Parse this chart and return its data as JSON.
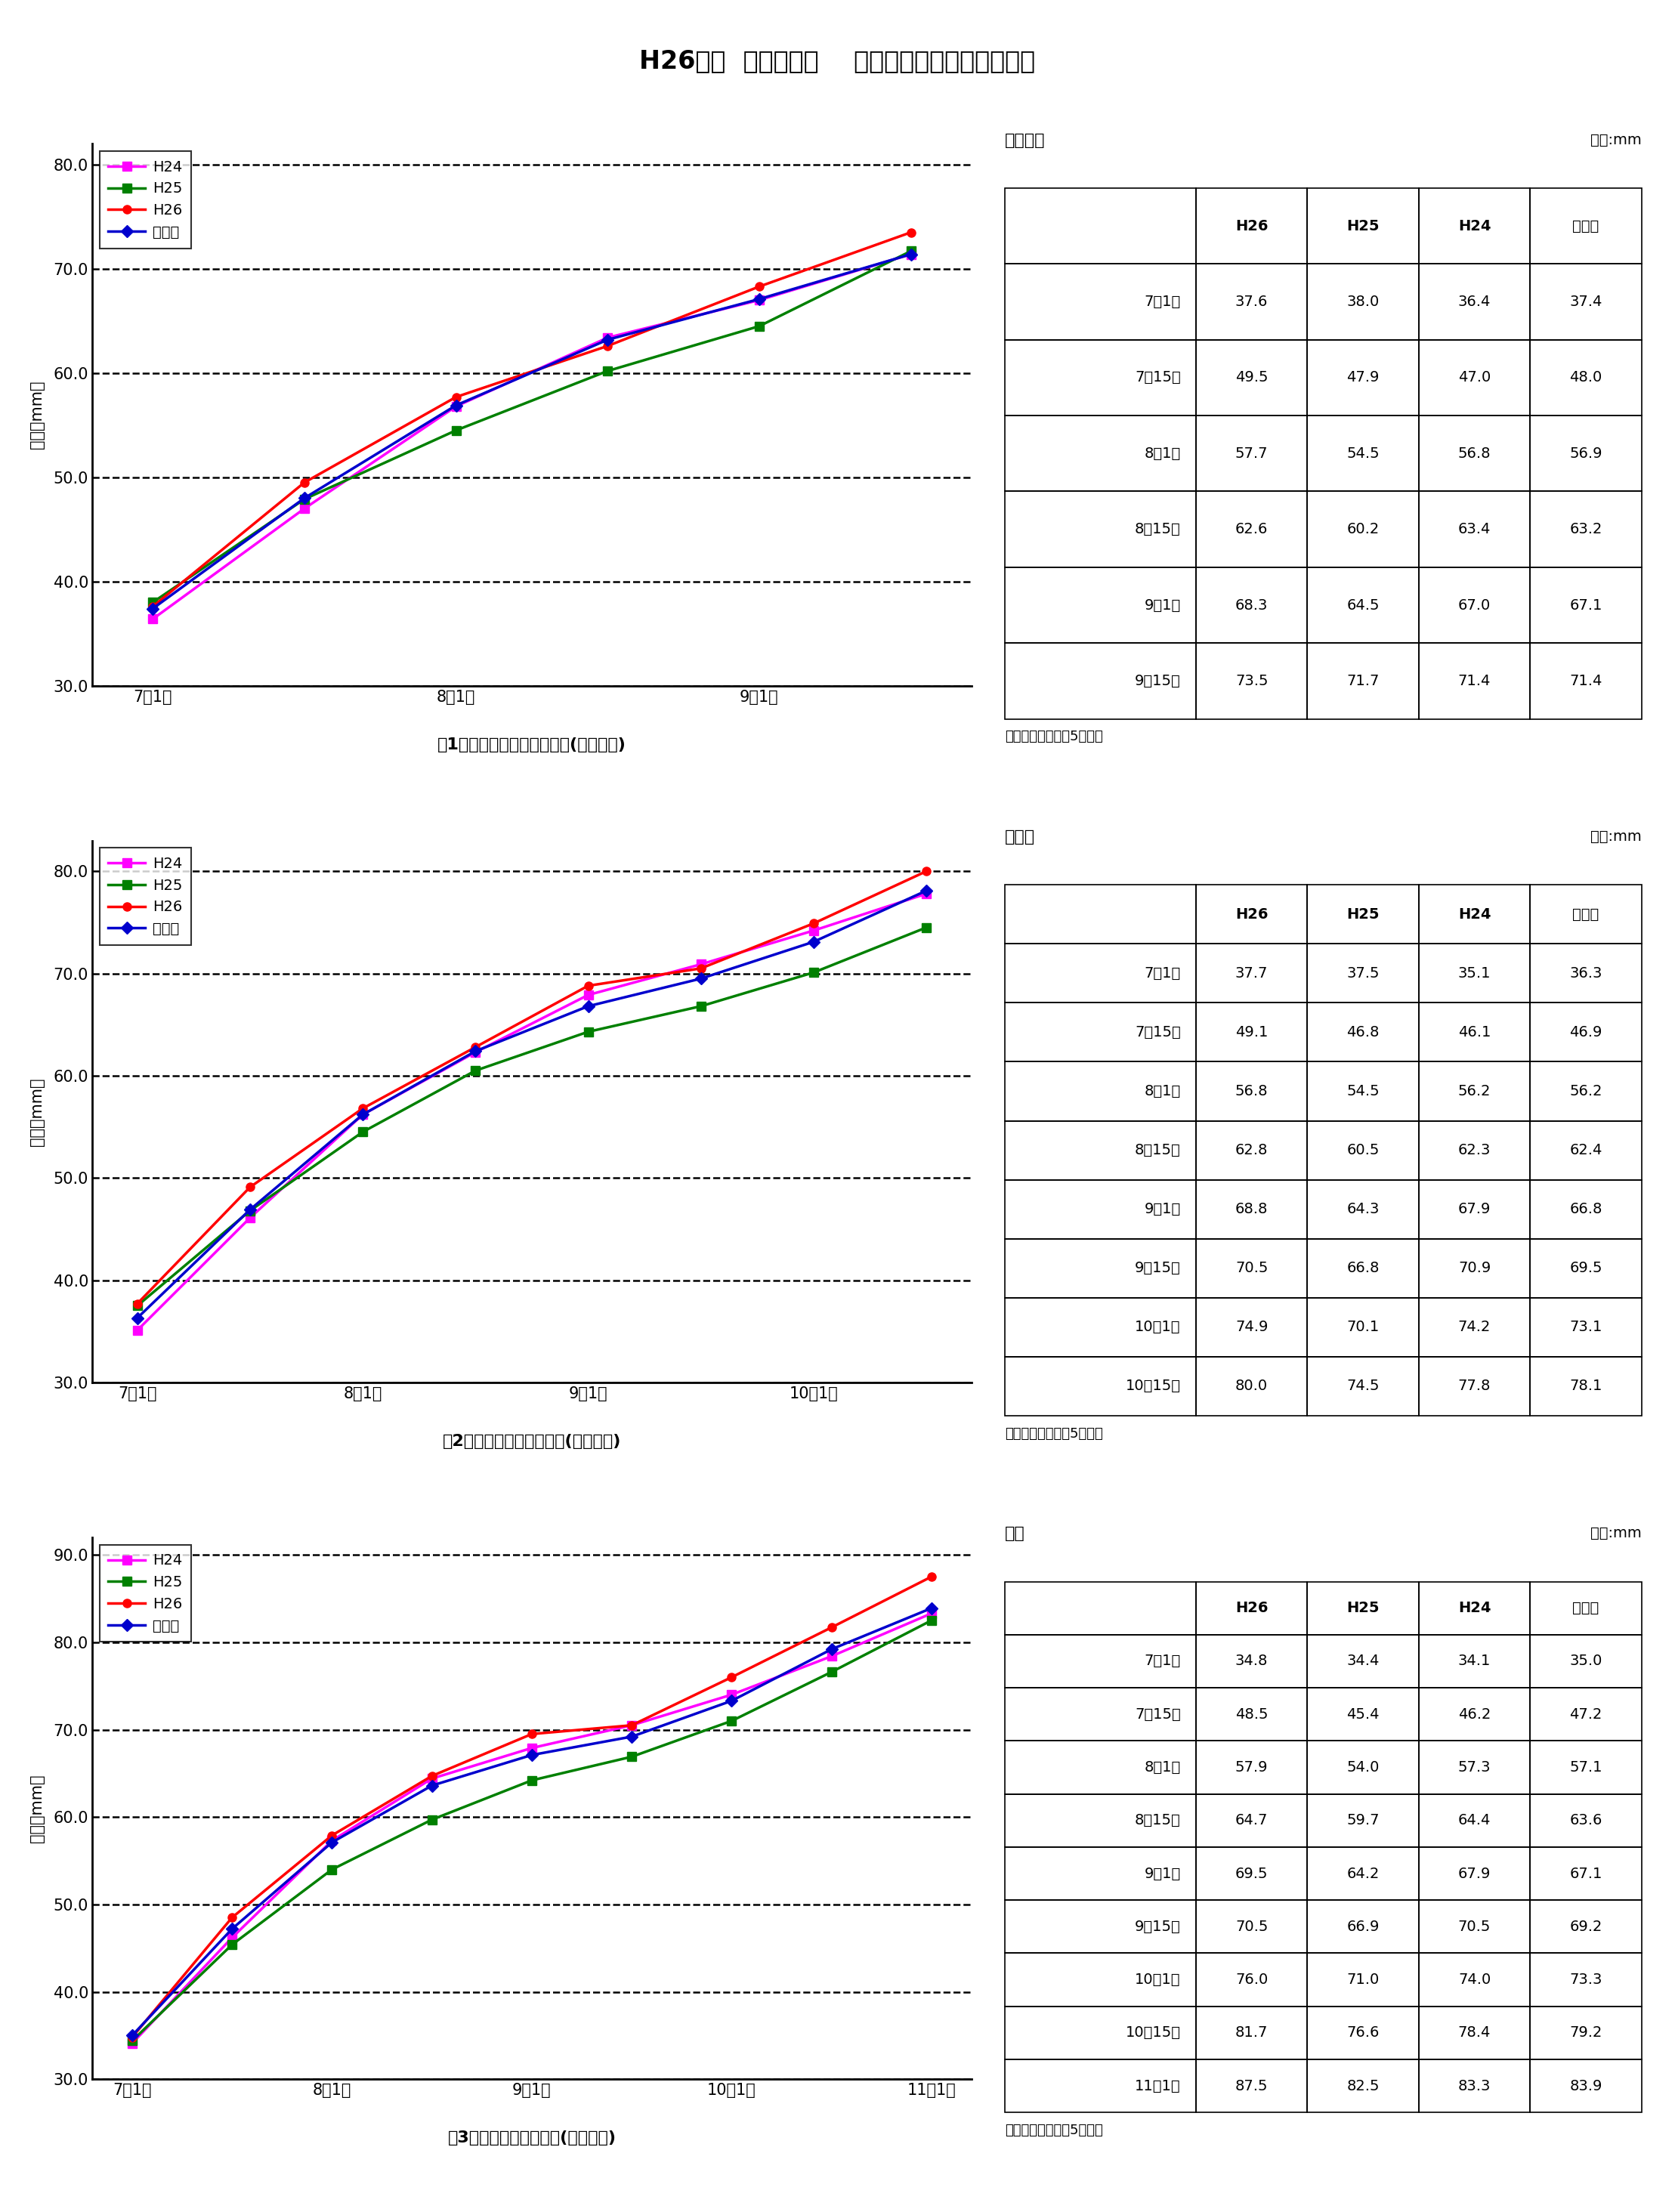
{
  "title": "H26年度  カキの肥大    伊都振興局農業振興課調べ",
  "series_order": [
    "H24",
    "H25",
    "H26",
    "平年値"
  ],
  "series_colors": {
    "H24": "#FF00FF",
    "H25": "#008000",
    "H26": "#FF0000",
    "平年値": "#0000CD"
  },
  "series_markers": {
    "H24": "s",
    "H25": "s",
    "H26": "o",
    "平年値": "D"
  },
  "chart1": {
    "caption": "図1　刀根早生の横径の推移(伊都平均)",
    "ylabel": "横径（mm）",
    "ylim": [
      30.0,
      82.0
    ],
    "yticks": [
      30.0,
      40.0,
      50.0,
      60.0,
      70.0,
      80.0
    ],
    "x_positions": [
      0,
      1,
      2,
      3,
      4,
      5
    ],
    "x_tick_positions": [
      0,
      2,
      4
    ],
    "x_tick_labels": [
      "7月1日",
      "8月1日",
      "9月1日"
    ],
    "series": {
      "H24": [
        36.4,
        47.0,
        56.8,
        63.4,
        67.0,
        71.4
      ],
      "H25": [
        38.0,
        47.9,
        54.5,
        60.2,
        64.5,
        71.7
      ],
      "H26": [
        37.6,
        49.5,
        57.7,
        62.6,
        68.3,
        73.5
      ],
      "平年値": [
        37.4,
        48.0,
        56.9,
        63.2,
        67.1,
        71.4
      ]
    },
    "table_title": "刀根早生",
    "table_unit": "単位:mm",
    "table_rows": [
      [
        "",
        "H26",
        "H25",
        "H24",
        "平年値"
      ],
      [
        "7月1日",
        "37.6",
        "38.0",
        "36.4",
        "37.4"
      ],
      [
        "7月15日",
        "49.5",
        "47.9",
        "47.0",
        "48.0"
      ],
      [
        "8月1日",
        "57.7",
        "54.5",
        "56.8",
        "56.9"
      ],
      [
        "8月15日",
        "62.6",
        "60.2",
        "63.4",
        "63.2"
      ],
      [
        "9月1日",
        "68.3",
        "64.5",
        "67.0",
        "67.1"
      ],
      [
        "9月15日",
        "73.5",
        "71.7",
        "71.4",
        "71.4"
      ]
    ],
    "table_note": "注　平年値は過去5年の値"
  },
  "chart2": {
    "caption": "図2　平核無の横径の推移(伊都平均)",
    "ylabel": "横径（mm）",
    "ylim": [
      30.0,
      83.0
    ],
    "yticks": [
      30.0,
      40.0,
      50.0,
      60.0,
      70.0,
      80.0
    ],
    "x_positions": [
      0,
      1,
      2,
      3,
      4,
      5,
      6,
      7
    ],
    "x_tick_positions": [
      0,
      2,
      4,
      6
    ],
    "x_tick_labels": [
      "7月1日",
      "8月1日",
      "9月1日",
      "10月1日"
    ],
    "series": {
      "H24": [
        35.1,
        46.1,
        56.2,
        62.3,
        67.9,
        70.9,
        74.2,
        77.8
      ],
      "H25": [
        37.5,
        46.8,
        54.5,
        60.5,
        64.3,
        66.8,
        70.1,
        74.5
      ],
      "H26": [
        37.7,
        49.1,
        56.8,
        62.8,
        68.8,
        70.5,
        74.9,
        80.0
      ],
      "平年値": [
        36.3,
        46.9,
        56.2,
        62.4,
        66.8,
        69.5,
        73.1,
        78.1
      ]
    },
    "table_title": "平核無",
    "table_unit": "単位:mm",
    "table_rows": [
      [
        "",
        "H26",
        "H25",
        "H24",
        "平年値"
      ],
      [
        "7月1日",
        "37.7",
        "37.5",
        "35.1",
        "36.3"
      ],
      [
        "7月15日",
        "49.1",
        "46.8",
        "46.1",
        "46.9"
      ],
      [
        "8月1日",
        "56.8",
        "54.5",
        "56.2",
        "56.2"
      ],
      [
        "8月15日",
        "62.8",
        "60.5",
        "62.3",
        "62.4"
      ],
      [
        "9月1日",
        "68.8",
        "64.3",
        "67.9",
        "66.8"
      ],
      [
        "9月15日",
        "70.5",
        "66.8",
        "70.9",
        "69.5"
      ],
      [
        "10月1日",
        "74.9",
        "70.1",
        "74.2",
        "73.1"
      ],
      [
        "10月15日",
        "80.0",
        "74.5",
        "77.8",
        "78.1"
      ]
    ],
    "table_note": "注　平年値は過去5年の値"
  },
  "chart3": {
    "caption": "図3　富有の横径の推移(伊都平均)",
    "ylabel": "横径（mm）",
    "ylim": [
      30.0,
      92.0
    ],
    "yticks": [
      30.0,
      40.0,
      50.0,
      60.0,
      70.0,
      80.0,
      90.0
    ],
    "x_positions": [
      0,
      1,
      2,
      3,
      4,
      5,
      6,
      7,
      8
    ],
    "x_tick_positions": [
      0,
      2,
      4,
      6,
      8
    ],
    "x_tick_labels": [
      "7月1日",
      "8月1日",
      "9月1日",
      "10月1日",
      "11月1日"
    ],
    "series": {
      "H24": [
        34.1,
        46.2,
        57.3,
        64.4,
        67.9,
        70.5,
        74.0,
        78.4,
        83.3
      ],
      "H25": [
        34.4,
        45.4,
        54.0,
        59.7,
        64.2,
        66.9,
        71.0,
        76.6,
        82.5
      ],
      "H26": [
        34.8,
        48.5,
        57.9,
        64.7,
        69.5,
        70.5,
        76.0,
        81.7,
        87.5
      ],
      "平年値": [
        35.0,
        47.2,
        57.1,
        63.6,
        67.1,
        69.2,
        73.3,
        79.2,
        83.9
      ]
    },
    "table_title": "富有",
    "table_unit": "単位:mm",
    "table_rows": [
      [
        "",
        "H26",
        "H25",
        "H24",
        "平年値"
      ],
      [
        "7月1日",
        "34.8",
        "34.4",
        "34.1",
        "35.0"
      ],
      [
        "7月15日",
        "48.5",
        "45.4",
        "46.2",
        "47.2"
      ],
      [
        "8月1日",
        "57.9",
        "54.0",
        "57.3",
        "57.1"
      ],
      [
        "8月15日",
        "64.7",
        "59.7",
        "64.4",
        "63.6"
      ],
      [
        "9月1日",
        "69.5",
        "64.2",
        "67.9",
        "67.1"
      ],
      [
        "9月15日",
        "70.5",
        "66.9",
        "70.5",
        "69.2"
      ],
      [
        "10月1日",
        "76.0",
        "71.0",
        "74.0",
        "73.3"
      ],
      [
        "10月15日",
        "81.7",
        "76.6",
        "78.4",
        "79.2"
      ],
      [
        "11月1日",
        "87.5",
        "82.5",
        "83.3",
        "83.9"
      ]
    ],
    "table_note": "注　平年値は過去5年の値"
  }
}
